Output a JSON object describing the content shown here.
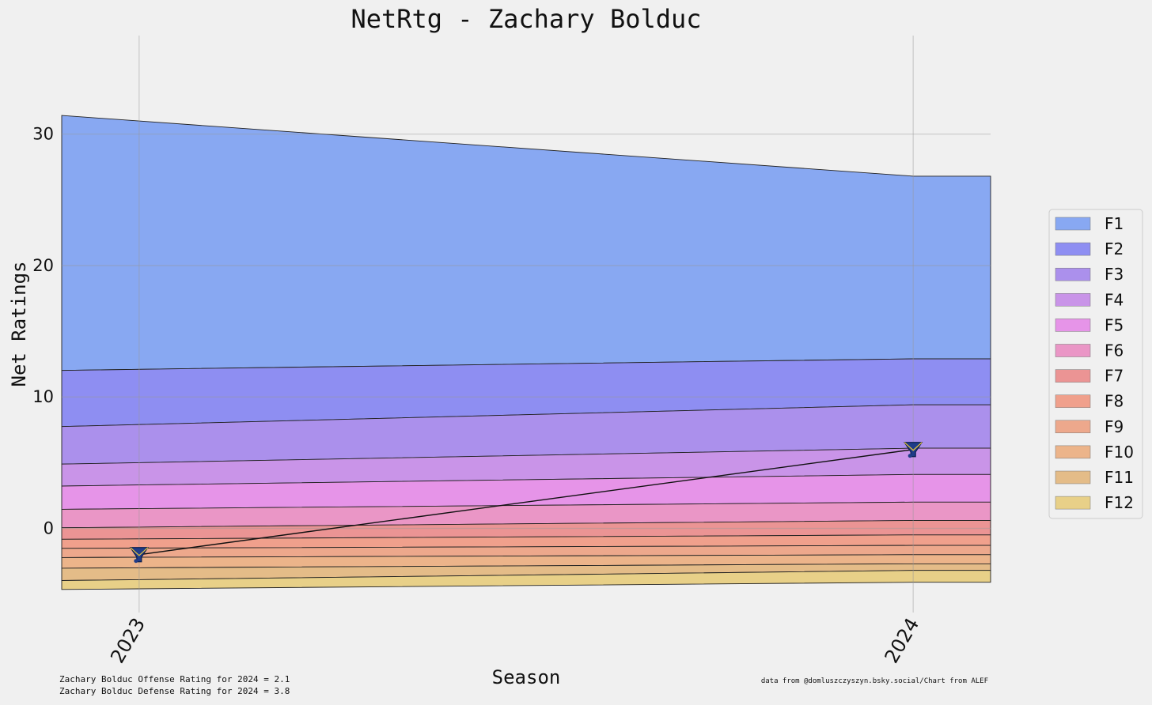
{
  "chart_data": {
    "type": "area",
    "title": "NetRtg - Zachary Bolduc",
    "xlabel": "Season",
    "ylabel": "Net Ratings",
    "x": [
      2023,
      2024
    ],
    "x_tick_labels": [
      "2023",
      "2024"
    ],
    "xlim": [
      2022.9,
      2024.1
    ],
    "ylim": [
      -4.6,
      37.5
    ],
    "y_ticks": [
      0,
      10,
      20,
      30
    ],
    "grid": true,
    "legend_position": "right",
    "bands": [
      {
        "name": "F1",
        "color": "#88a8f2",
        "top": [
          31.0,
          26.8
        ]
      },
      {
        "name": "F2",
        "color": "#8e8ef2",
        "top": [
          12.1,
          12.9
        ]
      },
      {
        "name": "F3",
        "color": "#ab90ec",
        "top": [
          7.9,
          9.4
        ]
      },
      {
        "name": "F4",
        "color": "#c994e8",
        "top": [
          5.0,
          6.1
        ]
      },
      {
        "name": "F5",
        "color": "#e694e8",
        "top": [
          3.3,
          4.1
        ]
      },
      {
        "name": "F6",
        "color": "#ea96c6",
        "top": [
          1.5,
          2.0
        ]
      },
      {
        "name": "F7",
        "color": "#eb9494",
        "top": [
          0.1,
          0.6
        ]
      },
      {
        "name": "F8",
        "color": "#f0a08c",
        "top": [
          -0.8,
          -0.5
        ]
      },
      {
        "name": "F9",
        "color": "#eda88c",
        "top": [
          -1.5,
          -1.3
        ]
      },
      {
        "name": "F10",
        "color": "#ecb48a",
        "top": [
          -2.2,
          -2.0
        ]
      },
      {
        "name": "F11",
        "color": "#e4bc88",
        "top": [
          -3.0,
          -2.7
        ]
      },
      {
        "name": "F12",
        "color": "#e8d088",
        "top": [
          -3.9,
          -3.2
        ]
      }
    ],
    "baseline": [
      -4.6,
      -4.1
    ],
    "player_line": {
      "color": "#111111",
      "marker_color": "#1f3c88",
      "marker": "logo",
      "values": [
        -2.0,
        6.0
      ]
    }
  },
  "footer": {
    "offense_note": "Zachary Bolduc Offense Rating for 2024 = 2.1",
    "defense_note": "Zachary Bolduc Defense Rating for 2024 = 3.8",
    "source_note": "data from  @domluszczyszyn.bsky.social/Chart from ALEF"
  }
}
